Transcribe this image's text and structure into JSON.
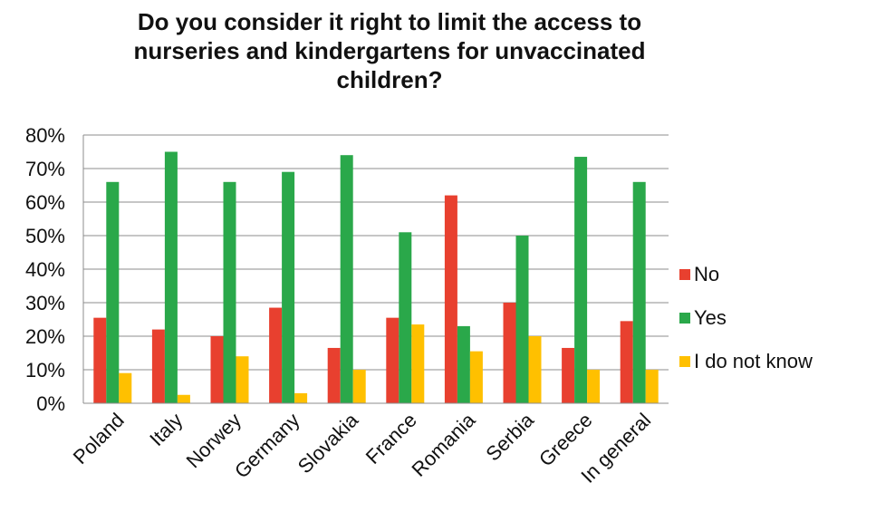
{
  "chart_data": {
    "type": "bar",
    "title": "Do you consider it right to limit the access to\nnurseries and kindergartens for unvaccinated\nchildren?",
    "xlabel": "",
    "ylabel": "",
    "ylim": [
      0,
      80
    ],
    "yticks": [
      "0%",
      "10%",
      "20%",
      "30%",
      "40%",
      "50%",
      "60%",
      "70%",
      "80%"
    ],
    "grid": true,
    "legend_position": "right",
    "categories": [
      "Poland",
      "Italy",
      "Norwey",
      "Germany",
      "Slovakia",
      "France",
      "Romania",
      "Serbia",
      "Greece",
      "In general"
    ],
    "series": [
      {
        "name": "No",
        "color": "#e8402f",
        "values": [
          25.5,
          22,
          20,
          28.5,
          16.5,
          25.5,
          62,
          30,
          16.5,
          24.5
        ]
      },
      {
        "name": "Yes",
        "color": "#2aa84a",
        "values": [
          66,
          75,
          66,
          69,
          74,
          51,
          23,
          50,
          73.5,
          66
        ]
      },
      {
        "name": "I do not know",
        "color": "#ffc000",
        "values": [
          9,
          2.5,
          14,
          3,
          10,
          23.5,
          15.5,
          20,
          10,
          10
        ]
      }
    ]
  }
}
